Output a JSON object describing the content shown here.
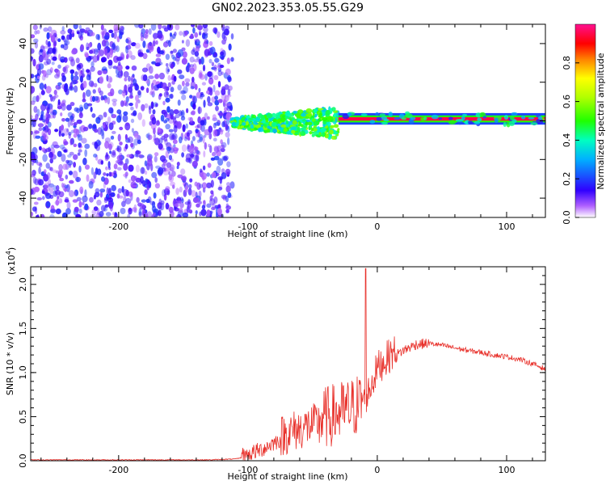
{
  "title": "GN02.2023.353.05.55.G29",
  "chart_data": [
    {
      "type": "heatmap",
      "xlabel": "Height of straight line (km)",
      "ylabel": "Frequency (Hz)",
      "xlim": [
        -268,
        130
      ],
      "ylim": [
        -50,
        50
      ],
      "x_ticks": [
        -200,
        -100,
        0,
        100
      ],
      "x_tick_labels": [
        "-200",
        "-100",
        "0",
        "100"
      ],
      "y_ticks": [
        -40,
        -20,
        0,
        20,
        40
      ],
      "y_tick_labels": [
        "-40",
        "-20",
        "0",
        "20",
        "40"
      ],
      "colorbar": {
        "label": "Normalized spectral amplitude",
        "range": [
          0.0,
          1.0
        ],
        "ticks": [
          0.0,
          0.2,
          0.4,
          0.6,
          0.8
        ],
        "tick_labels": [
          "0.0",
          "0.2",
          "0.4",
          "0.6",
          "0.8"
        ],
        "colormap": "white-purple-blue-cyan-green-yellow-red-magenta"
      },
      "regions": [
        {
          "name": "noise",
          "x_range": [
            -268,
            -112
          ],
          "y_range": [
            -50,
            50
          ],
          "amplitude": [
            0.05,
            0.2
          ]
        },
        {
          "name": "scattered-signal",
          "x_range": [
            -112,
            -30
          ],
          "center_freq": -1,
          "freq_spread": 8,
          "amplitude": [
            0.3,
            0.6
          ]
        },
        {
          "name": "coherent-signal",
          "x_range": [
            -30,
            130
          ],
          "center_freq": 1,
          "freq_spread": 3,
          "amplitude": [
            0.8,
            0.95
          ]
        }
      ],
      "grid": false
    },
    {
      "type": "line",
      "xlabel": "Height of straight line (km)",
      "ylabel": "SNR (10 * v/v)",
      "scale_note": "(x10",
      "scale_exp": "4",
      "scale_close": ")",
      "xlim": [
        -268,
        130
      ],
      "ylim": [
        0,
        2.2
      ],
      "x_ticks": [
        -200,
        -100,
        0,
        100
      ],
      "x_tick_labels": [
        "-200",
        "-100",
        "0",
        "100"
      ],
      "y_ticks": [
        0.0,
        0.5,
        1.0,
        1.5,
        2.0
      ],
      "y_tick_labels": [
        "0.0",
        "0.5",
        "1.0",
        "1.5",
        "2.0"
      ],
      "series": [
        {
          "color": "#e8302a",
          "x": [
            -268,
            -200,
            -130,
            -110,
            -100,
            -90,
            -80,
            -70,
            -60,
            -50,
            -40,
            -30,
            -20,
            -15,
            -10,
            -5,
            0,
            10,
            20,
            30,
            40,
            50,
            60,
            70,
            80,
            90,
            100,
            110,
            120,
            130
          ],
          "y": [
            0.01,
            0.01,
            0.01,
            0.02,
            0.05,
            0.1,
            0.18,
            0.25,
            0.3,
            0.35,
            0.4,
            0.45,
            0.5,
            0.55,
            0.62,
            0.8,
            1.0,
            1.15,
            1.25,
            1.32,
            1.33,
            1.31,
            1.28,
            1.25,
            1.23,
            1.2,
            1.18,
            1.15,
            1.1,
            1.04
          ],
          "noise_band": [
            {
              "x": [
                -105,
                -75
              ],
              "amp": 0.12
            },
            {
              "x": [
                -75,
                -45
              ],
              "amp": 0.3
            },
            {
              "x": [
                -45,
                -10
              ],
              "amp": 0.45
            },
            {
              "x": [
                -10,
                15
              ],
              "amp": 0.25
            },
            {
              "x": [
                15,
                40
              ],
              "amp": 0.06
            },
            {
              "x": [
                40,
                130
              ],
              "amp": 0.03
            }
          ],
          "spike": {
            "x": -9,
            "y": 2.18
          }
        }
      ],
      "grid": false
    }
  ]
}
